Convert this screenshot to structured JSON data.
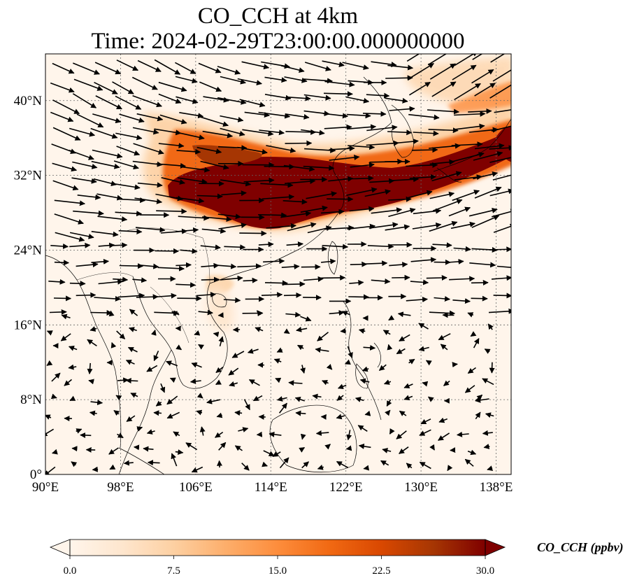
{
  "title": {
    "line1": "CO_CCH at 4km",
    "line2": "Time: 2024-02-29T23:00:00.000000000"
  },
  "map": {
    "variable": "CO_CCH",
    "extent": {
      "lon_min": 90,
      "lon_max": 139.6,
      "lat_min": 0,
      "lat_max": 45
    },
    "lat_ticks": [
      {
        "value": 0,
        "label": "0°"
      },
      {
        "value": 8,
        "label": "8°N"
      },
      {
        "value": 16,
        "label": "16°N"
      },
      {
        "value": 24,
        "label": "24°N"
      },
      {
        "value": 32,
        "label": "32°N"
      },
      {
        "value": 40,
        "label": "40°N"
      }
    ],
    "lon_ticks": [
      {
        "value": 90,
        "label": "90°E"
      },
      {
        "value": 98,
        "label": "98°E"
      },
      {
        "value": 106,
        "label": "106°E"
      },
      {
        "value": 114,
        "label": "114°E"
      },
      {
        "value": 122,
        "label": "122°E"
      },
      {
        "value": 130,
        "label": "130°E"
      },
      {
        "value": 138,
        "label": "138°E"
      }
    ],
    "gridlines": true,
    "overlay": "wind-vectors",
    "plume_description_colors": {
      "background": "#fff5eb",
      "high": "#7f0000"
    }
  },
  "colorbar": {
    "label": "CO_CCH (ppbv)",
    "min": 0.0,
    "max": 30.0,
    "ticks": [
      "0.0",
      "7.5",
      "15.0",
      "22.5",
      "30.0"
    ],
    "extend": "both",
    "colormap": [
      "#fff5eb",
      "#fee6ce",
      "#fdd0a2",
      "#fdae6b",
      "#fd8d3c",
      "#f16913",
      "#d94801",
      "#a63603",
      "#7f0000"
    ]
  }
}
